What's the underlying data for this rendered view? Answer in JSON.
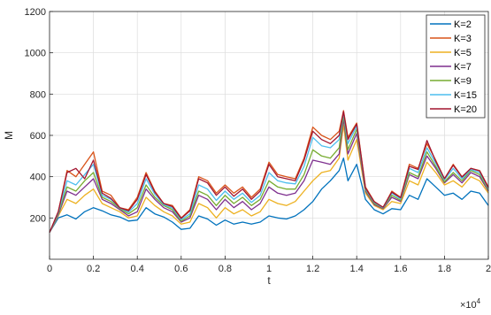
{
  "chart_data": {
    "type": "line",
    "xlabel": "t",
    "ylabel": "M",
    "x_exponent_label": "×10",
    "x_exponent_power": "4",
    "xlim": [
      0,
      20000
    ],
    "ylim": [
      0,
      1200
    ],
    "xticks": [
      0,
      2000,
      4000,
      6000,
      8000,
      10000,
      12000,
      14000,
      16000,
      18000,
      20000
    ],
    "xtick_labels": [
      "0",
      "0.2",
      "0.4",
      "0.6",
      "0.8",
      "1",
      "1.2",
      "1.4",
      "1.6",
      "1.8",
      "2"
    ],
    "yticks": [
      200,
      400,
      600,
      800,
      1000,
      1200
    ],
    "ytick_labels": [
      "200",
      "400",
      "600",
      "800",
      "1000",
      "1200"
    ],
    "grid": true,
    "legend_position": "top-right",
    "x": [
      0,
      400,
      800,
      1200,
      1600,
      2000,
      2400,
      2800,
      3200,
      3600,
      4000,
      4400,
      4800,
      5200,
      5600,
      6000,
      6400,
      6800,
      7200,
      7600,
      8000,
      8400,
      8800,
      9200,
      9600,
      10000,
      10400,
      10800,
      11200,
      11600,
      12000,
      12400,
      12800,
      13200,
      13400,
      13600,
      14000,
      14400,
      14800,
      15200,
      15600,
      16000,
      16400,
      16800,
      17200,
      17600,
      18000,
      18400,
      18800,
      19200,
      19600,
      20000
    ],
    "series": [
      {
        "name": "K=2",
        "color": "#0072BD",
        "values": [
          130,
          200,
          215,
          195,
          230,
          250,
          235,
          215,
          205,
          185,
          190,
          250,
          220,
          205,
          180,
          145,
          150,
          210,
          195,
          165,
          190,
          170,
          180,
          170,
          180,
          210,
          200,
          195,
          210,
          240,
          280,
          340,
          380,
          430,
          490,
          380,
          460,
          290,
          240,
          220,
          245,
          240,
          310,
          290,
          390,
          350,
          310,
          320,
          290,
          330,
          320,
          260
        ]
      },
      {
        "name": "K=3",
        "color": "#D95319",
        "values": [
          130,
          230,
          430,
          400,
          460,
          520,
          330,
          310,
          250,
          240,
          300,
          420,
          330,
          270,
          260,
          200,
          240,
          400,
          380,
          320,
          360,
          320,
          350,
          300,
          340,
          470,
          410,
          400,
          390,
          490,
          640,
          600,
          580,
          620,
          720,
          590,
          660,
          350,
          280,
          250,
          330,
          300,
          460,
          440,
          560,
          480,
          390,
          460,
          400,
          440,
          430,
          350
        ]
      },
      {
        "name": "K=5",
        "color": "#EDB120",
        "values": [
          130,
          210,
          290,
          270,
          310,
          340,
          270,
          250,
          230,
          200,
          210,
          300,
          260,
          230,
          210,
          170,
          180,
          270,
          250,
          200,
          250,
          220,
          240,
          210,
          230,
          290,
          270,
          260,
          280,
          330,
          380,
          420,
          430,
          490,
          650,
          480,
          580,
          320,
          260,
          240,
          280,
          270,
          380,
          360,
          470,
          420,
          360,
          380,
          350,
          400,
          380,
          320
        ]
      },
      {
        "name": "K=7",
        "color": "#7E2F8E",
        "values": [
          130,
          215,
          330,
          310,
          350,
          390,
          290,
          270,
          240,
          210,
          230,
          340,
          290,
          250,
          230,
          180,
          200,
          310,
          290,
          240,
          290,
          250,
          280,
          240,
          270,
          350,
          320,
          310,
          320,
          380,
          480,
          470,
          460,
          510,
          680,
          510,
          610,
          330,
          265,
          245,
          300,
          280,
          410,
          390,
          500,
          440,
          370,
          410,
          370,
          420,
          400,
          330
        ]
      },
      {
        "name": "K=9",
        "color": "#77AC30",
        "values": [
          130,
          220,
          350,
          330,
          380,
          420,
          300,
          280,
          245,
          220,
          250,
          360,
          300,
          260,
          240,
          185,
          210,
          330,
          310,
          260,
          310,
          270,
          300,
          260,
          290,
          380,
          350,
          340,
          340,
          410,
          530,
          500,
          490,
          540,
          700,
          530,
          630,
          335,
          270,
          248,
          310,
          285,
          420,
          400,
          520,
          450,
          375,
          420,
          380,
          430,
          410,
          335
        ]
      },
      {
        "name": "K=15",
        "color": "#4DBEEE",
        "values": [
          130,
          225,
          380,
          360,
          410,
          460,
          310,
          290,
          248,
          228,
          270,
          390,
          315,
          265,
          248,
          192,
          220,
          360,
          340,
          285,
          330,
          290,
          320,
          275,
          310,
          420,
          380,
          370,
          365,
          450,
          590,
          550,
          540,
          580,
          710,
          560,
          645,
          340,
          275,
          250,
          320,
          292,
          440,
          420,
          540,
          465,
          385,
          440,
          390,
          435,
          420,
          342
        ]
      },
      {
        "name": "K=20",
        "color": "#A2142F",
        "values": [
          130,
          230,
          420,
          440,
          390,
          480,
          320,
          295,
          250,
          235,
          290,
          410,
          325,
          270,
          255,
          198,
          235,
          390,
          370,
          310,
          350,
          305,
          340,
          290,
          330,
          460,
          400,
          390,
          380,
          480,
          620,
          580,
          560,
          600,
          715,
          580,
          655,
          345,
          278,
          252,
          325,
          298,
          450,
          435,
          575,
          475,
          390,
          455,
          398,
          440,
          428,
          346
        ]
      }
    ]
  }
}
